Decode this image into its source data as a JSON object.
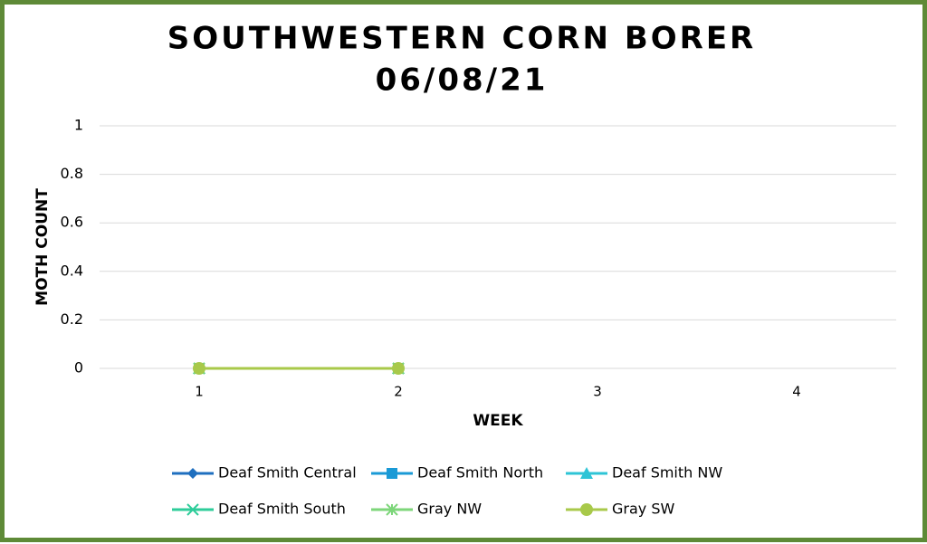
{
  "chart_data": {
    "type": "line",
    "title": "SOUTHWESTERN CORN BORER",
    "subtitle": "06/08/21",
    "x_label": "WEEK",
    "y_label": "MOTH COUNT",
    "categories": [
      "1",
      "2",
      "3",
      "4"
    ],
    "series": [
      {
        "name": "Deaf Smith Central",
        "color": "#1f6fbf",
        "marker": "diamond",
        "values": [
          0,
          0,
          null,
          null
        ]
      },
      {
        "name": "Deaf Smith North",
        "color": "#1a9ad6",
        "marker": "square",
        "values": [
          0,
          0,
          null,
          null
        ]
      },
      {
        "name": "Deaf Smith NW",
        "color": "#2ec4d6",
        "marker": "triangle",
        "values": [
          0,
          0,
          null,
          null
        ]
      },
      {
        "name": "Deaf Smith South",
        "color": "#2ecc9a",
        "marker": "x",
        "values": [
          0,
          0,
          null,
          null
        ]
      },
      {
        "name": "Gray NW",
        "color": "#7dd67a",
        "marker": "asterisk",
        "values": [
          0,
          0,
          null,
          null
        ]
      },
      {
        "name": "Gray SW",
        "color": "#a8c94a",
        "marker": "circle",
        "values": [
          0,
          0,
          null,
          null
        ]
      }
    ],
    "ylim": [
      0,
      1
    ],
    "yticks": [
      0,
      0.2,
      0.4,
      0.6,
      0.8,
      1
    ],
    "grid": true,
    "legend": "bottom"
  }
}
